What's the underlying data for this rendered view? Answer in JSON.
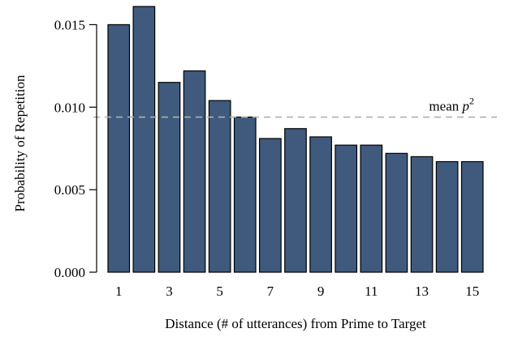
{
  "chart_data": {
    "type": "bar",
    "categories": [
      "1",
      "2",
      "3",
      "4",
      "5",
      "6",
      "7",
      "8",
      "9",
      "10",
      "11",
      "12",
      "13",
      "14",
      "15"
    ],
    "values": [
      0.015,
      0.0161,
      0.0115,
      0.0122,
      0.0104,
      0.0094,
      0.0081,
      0.0087,
      0.0082,
      0.0077,
      0.0077,
      0.0072,
      0.007,
      0.0067,
      0.0067
    ],
    "x_tick_labels": [
      "1",
      "3",
      "5",
      "7",
      "9",
      "11",
      "13",
      "15"
    ],
    "y_ticks": [
      0.0,
      0.005,
      0.01,
      0.015
    ],
    "y_tick_labels": [
      "0.000",
      "0.005",
      "0.010",
      "0.015"
    ],
    "ylim": [
      0,
      0.0162
    ],
    "xlabel": "Distance (# of utterances) from Prime to Target",
    "ylabel": "Probability of Repetition",
    "grid": false,
    "reference_line": {
      "value": 0.0094,
      "label_text": "mean ",
      "label_var": "p",
      "label_sup": "2",
      "color": "#b0b0b0"
    },
    "bar_color": "#3f5a7d"
  }
}
